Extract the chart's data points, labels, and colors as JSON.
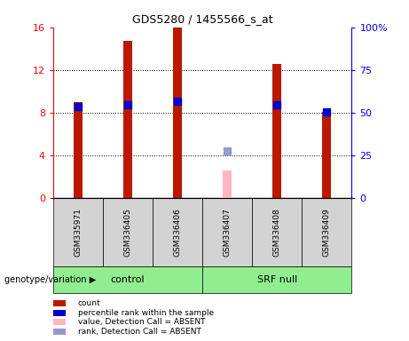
{
  "title": "GDS5280 / 1455566_s_at",
  "samples": [
    "GSM335971",
    "GSM336405",
    "GSM336406",
    "GSM336407",
    "GSM336408",
    "GSM336409"
  ],
  "count_values": [
    9.0,
    14.7,
    16.0,
    null,
    12.6,
    8.1
  ],
  "count_absent": [
    null,
    null,
    null,
    2.6,
    null,
    null
  ],
  "rank_values": [
    8.6,
    8.7,
    9.1,
    null,
    8.7,
    8.1
  ],
  "rank_absent": [
    null,
    null,
    null,
    4.4,
    null,
    null
  ],
  "ylim_left": [
    0,
    16
  ],
  "ylim_right": [
    0,
    100
  ],
  "yticks_left": [
    0,
    4,
    8,
    12,
    16
  ],
  "ytick_labels_left": [
    "0",
    "4",
    "8",
    "12",
    "16"
  ],
  "yticks_right": [
    0,
    25,
    50,
    75,
    100
  ],
  "ytick_labels_right": [
    "0",
    "25",
    "50",
    "75",
    "100%"
  ],
  "bar_color_present": "#bb1800",
  "bar_color_absent": "#ffb6c1",
  "rank_color_present": "#0000cc",
  "rank_color_absent": "#9999cc",
  "bar_width": 0.18,
  "rank_marker_size": 30,
  "bg_xlabels": "#d3d3d3",
  "bg_group": "#90EE90",
  "genotype_label": "genotype/variation",
  "legend_items": [
    {
      "color": "#bb1800",
      "label": "count"
    },
    {
      "color": "#0000cc",
      "label": "percentile rank within the sample"
    },
    {
      "color": "#ffb6c1",
      "label": "value, Detection Call = ABSENT"
    },
    {
      "color": "#9999cc",
      "label": "rank, Detection Call = ABSENT"
    }
  ]
}
